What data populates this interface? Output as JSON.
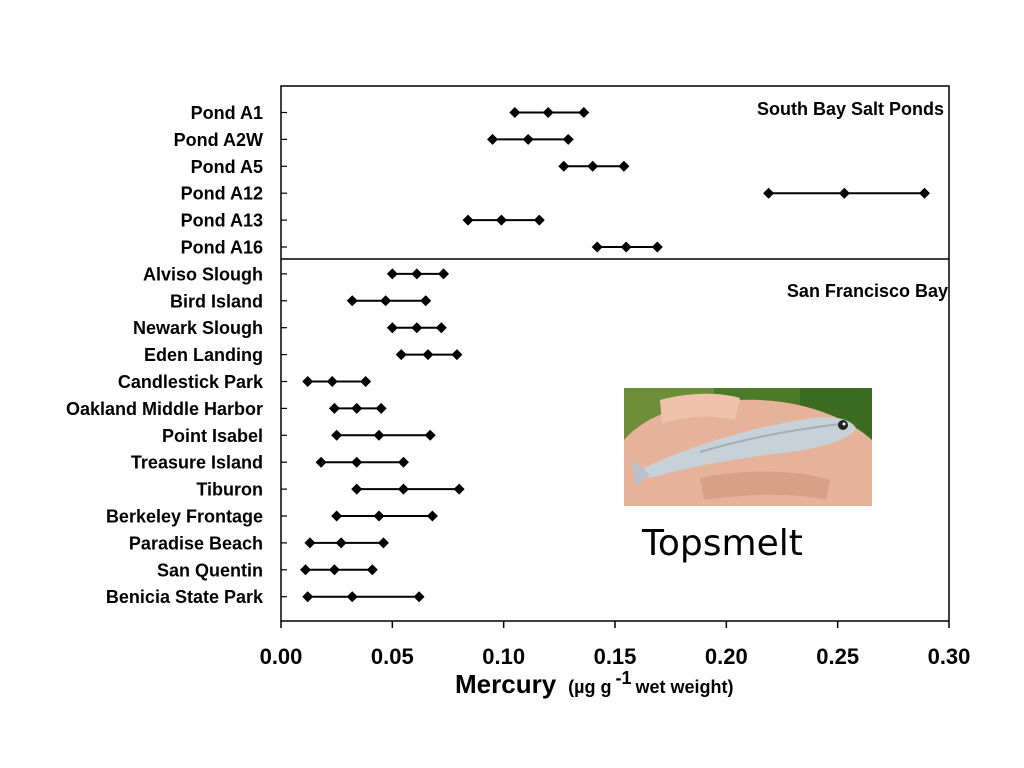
{
  "chart_data": {
    "type": "range",
    "title": "",
    "xlabel": "Mercury",
    "xlabel_unit": "(µg g",
    "xlabel_unit_sup": "-1",
    "xlabel_unit_tail": " wet weight)",
    "xlim": [
      0,
      0.3
    ],
    "xticks": [
      "0.00",
      "0.05",
      "0.10",
      "0.15",
      "0.20",
      "0.25",
      "0.30"
    ],
    "grid": false,
    "panels": [
      {
        "label": "South Bay Salt Ponds",
        "rows": [
          {
            "name": "Pond A1",
            "low": 0.105,
            "mean": 0.12,
            "high": 0.136
          },
          {
            "name": "Pond A2W",
            "low": 0.095,
            "mean": 0.111,
            "high": 0.129
          },
          {
            "name": "Pond A5",
            "low": 0.127,
            "mean": 0.14,
            "high": 0.154
          },
          {
            "name": "Pond A12",
            "low": 0.219,
            "mean": 0.253,
            "high": 0.289
          },
          {
            "name": "Pond A13",
            "low": 0.084,
            "mean": 0.099,
            "high": 0.116
          },
          {
            "name": "Pond A16",
            "low": 0.142,
            "mean": 0.155,
            "high": 0.169
          }
        ]
      },
      {
        "label": "San Francisco Bay",
        "rows": [
          {
            "name": "Alviso Slough",
            "low": 0.05,
            "mean": 0.061,
            "high": 0.073
          },
          {
            "name": "Bird Island",
            "low": 0.032,
            "mean": 0.047,
            "high": 0.065
          },
          {
            "name": "Newark Slough",
            "low": 0.05,
            "mean": 0.061,
            "high": 0.072
          },
          {
            "name": "Eden Landing",
            "low": 0.054,
            "mean": 0.066,
            "high": 0.079
          },
          {
            "name": "Candlestick Park",
            "low": 0.012,
            "mean": 0.023,
            "high": 0.038
          },
          {
            "name": "Oakland Middle Harbor",
            "low": 0.024,
            "mean": 0.034,
            "high": 0.045
          },
          {
            "name": "Point Isabel",
            "low": 0.025,
            "mean": 0.044,
            "high": 0.067
          },
          {
            "name": "Treasure Island",
            "low": 0.018,
            "mean": 0.034,
            "high": 0.055
          },
          {
            "name": "Tiburon",
            "low": 0.034,
            "mean": 0.055,
            "high": 0.08
          },
          {
            "name": "Berkeley Frontage",
            "low": 0.025,
            "mean": 0.044,
            "high": 0.068
          },
          {
            "name": "Paradise Beach",
            "low": 0.013,
            "mean": 0.027,
            "high": 0.046
          },
          {
            "name": "San Quentin",
            "low": 0.011,
            "mean": 0.024,
            "high": 0.041
          },
          {
            "name": "Benicia State Park",
            "low": 0.012,
            "mean": 0.032,
            "high": 0.062
          }
        ]
      }
    ]
  },
  "photo": {
    "caption": "Topsmelt",
    "subject": "fish-in-hand-photo",
    "colors": {
      "background": "#4a7a2a",
      "hand": "#e8b8a0",
      "fish": "#c8d0d8"
    }
  },
  "colors": {
    "marker": "#000000",
    "line": "#000000",
    "frame": "#000000"
  }
}
